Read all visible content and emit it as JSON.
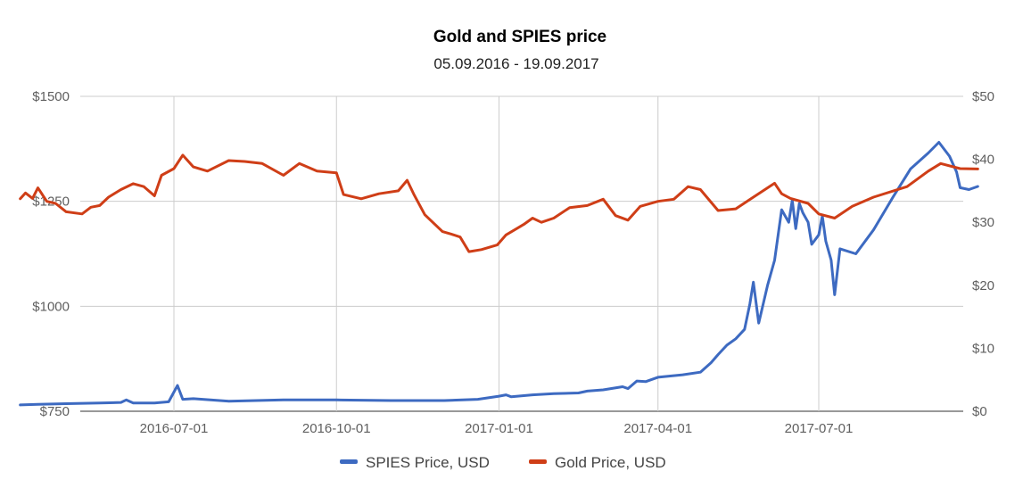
{
  "chart_data": {
    "type": "line",
    "title": "Gold and SPIES price",
    "subtitle": "05.09.2016 - 19.09.2017",
    "x_ticks": [
      "2016-07-01",
      "2016-10-01",
      "2017-01-01",
      "2017-04-01",
      "2017-07-01"
    ],
    "x_range": [
      "2016-04-05",
      "2017-09-19"
    ],
    "y_left": {
      "ticks": [
        "$1500",
        "$1250",
        "$1000",
        "$750"
      ],
      "range": [
        750,
        1500
      ]
    },
    "y_right": {
      "ticks": [
        "$50",
        "$40",
        "$30",
        "$20",
        "$10",
        "$0"
      ],
      "range": [
        0,
        50
      ]
    },
    "grid": true,
    "legend_position": "bottom",
    "series": [
      {
        "name": "SPIES Price, USD",
        "axis": "right",
        "color": "#3d6ac1",
        "points": [
          [
            "2016-04-05",
            1.0
          ],
          [
            "2016-04-15",
            1.1
          ],
          [
            "2016-05-01",
            1.2
          ],
          [
            "2016-05-20",
            1.3
          ],
          [
            "2016-06-01",
            1.4
          ],
          [
            "2016-06-04",
            1.8
          ],
          [
            "2016-06-08",
            1.3
          ],
          [
            "2016-06-20",
            1.3
          ],
          [
            "2016-06-28",
            1.5
          ],
          [
            "2016-07-03",
            4.1
          ],
          [
            "2016-07-06",
            1.9
          ],
          [
            "2016-07-12",
            2.0
          ],
          [
            "2016-08-01",
            1.6
          ],
          [
            "2016-09-01",
            1.8
          ],
          [
            "2016-10-01",
            1.8
          ],
          [
            "2016-11-01",
            1.7
          ],
          [
            "2016-12-01",
            1.7
          ],
          [
            "2016-12-20",
            1.9
          ],
          [
            "2017-01-01",
            2.4
          ],
          [
            "2017-01-05",
            2.6
          ],
          [
            "2017-01-08",
            2.3
          ],
          [
            "2017-01-20",
            2.6
          ],
          [
            "2017-02-01",
            2.8
          ],
          [
            "2017-02-15",
            2.9
          ],
          [
            "2017-02-20",
            3.2
          ],
          [
            "2017-03-01",
            3.4
          ],
          [
            "2017-03-12",
            3.9
          ],
          [
            "2017-03-15",
            3.6
          ],
          [
            "2017-03-20",
            4.8
          ],
          [
            "2017-03-25",
            4.7
          ],
          [
            "2017-04-01",
            5.4
          ],
          [
            "2017-04-08",
            5.6
          ],
          [
            "2017-04-15",
            5.8
          ],
          [
            "2017-04-25",
            6.2
          ],
          [
            "2017-05-01",
            7.7
          ],
          [
            "2017-05-05",
            9.0
          ],
          [
            "2017-05-10",
            10.5
          ],
          [
            "2017-05-15",
            11.5
          ],
          [
            "2017-05-20",
            13.0
          ],
          [
            "2017-05-23",
            17.0
          ],
          [
            "2017-05-25",
            20.5
          ],
          [
            "2017-05-28",
            14.0
          ],
          [
            "2017-06-02",
            20.0
          ],
          [
            "2017-06-06",
            24.0
          ],
          [
            "2017-06-10",
            32.0
          ],
          [
            "2017-06-14",
            30.0
          ],
          [
            "2017-06-16",
            33.5
          ],
          [
            "2017-06-18",
            29.0
          ],
          [
            "2017-06-20",
            33.0
          ],
          [
            "2017-06-22",
            31.5
          ],
          [
            "2017-06-25",
            30.0
          ],
          [
            "2017-06-27",
            26.5
          ],
          [
            "2017-07-01",
            28.0
          ],
          [
            "2017-07-03",
            31.0
          ],
          [
            "2017-07-05",
            27.0
          ],
          [
            "2017-07-08",
            24.0
          ],
          [
            "2017-07-10",
            18.5
          ],
          [
            "2017-07-13",
            25.8
          ],
          [
            "2017-07-22",
            25.0
          ],
          [
            "2017-08-01",
            28.8
          ],
          [
            "2017-08-12",
            34.0
          ],
          [
            "2017-08-22",
            38.5
          ],
          [
            "2017-09-01",
            41.0
          ],
          [
            "2017-09-07",
            42.7
          ],
          [
            "2017-09-13",
            40.5
          ],
          [
            "2017-09-17",
            38.0
          ],
          [
            "2017-09-19",
            35.5
          ],
          [
            "2017-09-24",
            35.2
          ],
          [
            "2017-09-29",
            35.7
          ]
        ]
      },
      {
        "name": "Gold Price, USD",
        "axis": "left",
        "color": "#cf3e17",
        "points": [
          [
            "2016-04-05",
            1256
          ],
          [
            "2016-04-08",
            1270
          ],
          [
            "2016-04-12",
            1257
          ],
          [
            "2016-04-15",
            1282
          ],
          [
            "2016-04-20",
            1250
          ],
          [
            "2016-04-25",
            1245
          ],
          [
            "2016-05-01",
            1225
          ],
          [
            "2016-05-10",
            1220
          ],
          [
            "2016-05-15",
            1236
          ],
          [
            "2016-05-20",
            1240
          ],
          [
            "2016-05-25",
            1260
          ],
          [
            "2016-06-01",
            1278
          ],
          [
            "2016-06-08",
            1292
          ],
          [
            "2016-06-14",
            1285
          ],
          [
            "2016-06-20",
            1263
          ],
          [
            "2016-06-24",
            1312
          ],
          [
            "2016-07-01",
            1328
          ],
          [
            "2016-07-06",
            1360
          ],
          [
            "2016-07-12",
            1332
          ],
          [
            "2016-07-20",
            1322
          ],
          [
            "2016-08-01",
            1347
          ],
          [
            "2016-08-10",
            1345
          ],
          [
            "2016-08-20",
            1340
          ],
          [
            "2016-09-01",
            1312
          ],
          [
            "2016-09-10",
            1340
          ],
          [
            "2016-09-20",
            1322
          ],
          [
            "2016-10-01",
            1318
          ],
          [
            "2016-10-05",
            1266
          ],
          [
            "2016-10-15",
            1256
          ],
          [
            "2016-10-25",
            1268
          ],
          [
            "2016-11-05",
            1275
          ],
          [
            "2016-11-10",
            1300
          ],
          [
            "2016-11-14",
            1265
          ],
          [
            "2016-11-20",
            1218
          ],
          [
            "2016-11-30",
            1178
          ],
          [
            "2016-12-05",
            1172
          ],
          [
            "2016-12-10",
            1165
          ],
          [
            "2016-12-15",
            1130
          ],
          [
            "2016-12-22",
            1135
          ],
          [
            "2016-12-31",
            1146
          ],
          [
            "2017-01-05",
            1170
          ],
          [
            "2017-01-15",
            1195
          ],
          [
            "2017-01-20",
            1210
          ],
          [
            "2017-01-25",
            1200
          ],
          [
            "2017-02-01",
            1210
          ],
          [
            "2017-02-10",
            1235
          ],
          [
            "2017-02-20",
            1240
          ],
          [
            "2017-03-01",
            1255
          ],
          [
            "2017-03-08",
            1216
          ],
          [
            "2017-03-15",
            1205
          ],
          [
            "2017-03-22",
            1238
          ],
          [
            "2017-04-01",
            1250
          ],
          [
            "2017-04-10",
            1255
          ],
          [
            "2017-04-18",
            1285
          ],
          [
            "2017-04-25",
            1278
          ],
          [
            "2017-05-05",
            1228
          ],
          [
            "2017-05-15",
            1232
          ],
          [
            "2017-05-25",
            1260
          ],
          [
            "2017-06-06",
            1293
          ],
          [
            "2017-06-10",
            1268
          ],
          [
            "2017-06-15",
            1257
          ],
          [
            "2017-06-25",
            1245
          ],
          [
            "2017-07-01",
            1220
          ],
          [
            "2017-07-10",
            1210
          ],
          [
            "2017-07-20",
            1238
          ],
          [
            "2017-08-01",
            1260
          ],
          [
            "2017-08-20",
            1285
          ],
          [
            "2017-09-01",
            1322
          ],
          [
            "2017-09-08",
            1340
          ],
          [
            "2017-09-19",
            1328
          ],
          [
            "2017-09-29",
            1327
          ]
        ]
      }
    ]
  }
}
